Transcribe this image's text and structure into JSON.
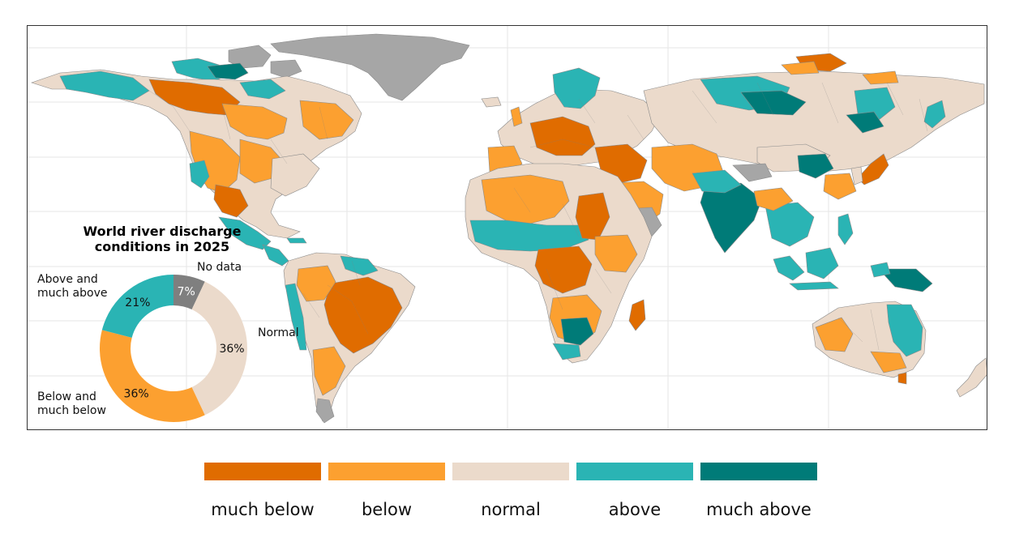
{
  "title": "World river discharge conditions in 2025",
  "colors": {
    "much_below": "#E06C00",
    "below": "#FCA030",
    "normal": "#EBDACB",
    "above": "#2AB4B4",
    "much_above": "#007B78",
    "no_data": "#A6A6A6",
    "no_data_donut": "#7F7F7F"
  },
  "donut": {
    "segments": [
      {
        "key": "no_data",
        "label": "No data",
        "value": 7,
        "pct_label": "7%"
      },
      {
        "key": "normal",
        "label": "Normal",
        "value": 36,
        "pct_label": "36%"
      },
      {
        "key": "below",
        "label": "Below and much below",
        "label_line1": "Below and",
        "label_line2": "much below",
        "value": 36,
        "pct_label": "36%"
      },
      {
        "key": "above",
        "label": "Above and much above",
        "label_line1": "Above and",
        "label_line2": "much above",
        "value": 21,
        "pct_label": "21%"
      }
    ]
  },
  "legend": [
    {
      "key": "much_below",
      "label": "much below",
      "color": "#E06C00"
    },
    {
      "key": "below",
      "label": "below",
      "color": "#FCA030"
    },
    {
      "key": "normal",
      "label": "normal",
      "color": "#EBDACB"
    },
    {
      "key": "above",
      "label": "above",
      "color": "#2AB4B4"
    },
    {
      "key": "much_above",
      "label": "much above",
      "color": "#007B78"
    }
  ]
}
